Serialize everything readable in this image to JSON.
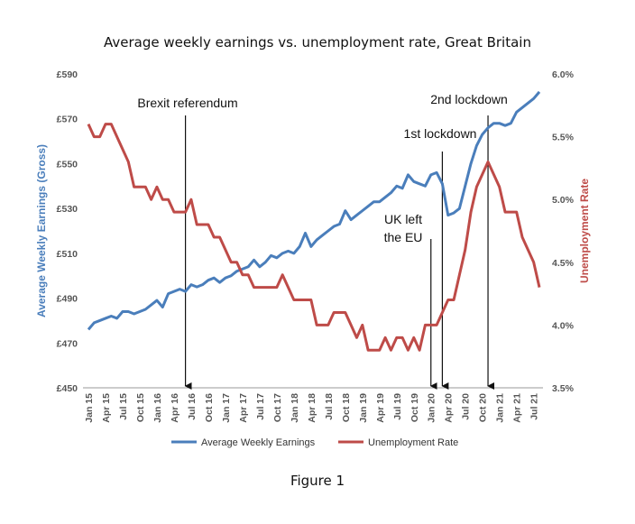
{
  "chart_data": {
    "type": "line",
    "title": "Average weekly earnings vs. unemployment rate, Great Britain",
    "caption": "Figure 1",
    "y_label": "Average Weekly Earnings (Gross)",
    "y2_label": "Unemployment Rate",
    "categories": [
      "Jan 15",
      null,
      null,
      "Apr 15",
      null,
      null,
      "Jul 15",
      null,
      null,
      "Oct 15",
      null,
      null,
      "Jan 16",
      null,
      null,
      "Apr 16",
      null,
      null,
      "Jul 16",
      null,
      null,
      "Oct 16",
      null,
      null,
      "Jan 17",
      null,
      null,
      "Apr 17",
      null,
      null,
      "Jul 17",
      null,
      null,
      "Oct 17",
      null,
      null,
      "Jan 18",
      null,
      null,
      "Apr 18",
      null,
      null,
      "Jul 18",
      null,
      null,
      "Oct 18",
      null,
      null,
      "Jan 19",
      null,
      null,
      "Apr 19",
      null,
      null,
      "Jul 19",
      null,
      null,
      "Oct 19",
      null,
      null,
      "Jan 20",
      null,
      null,
      "Apr 20",
      null,
      null,
      "Jul 20",
      null,
      null,
      "Oct 20",
      null,
      null,
      "Jan 21",
      null,
      null,
      "Apr 21",
      null,
      null,
      "Jul 21",
      null
    ],
    "series": [
      {
        "name": "Average Weekly Earnings",
        "color": "#4a7ebb",
        "values": [
          476,
          479,
          480,
          481,
          482,
          481,
          484,
          484,
          483,
          484,
          485,
          487,
          489,
          486,
          492,
          493,
          494,
          493,
          496,
          495,
          496,
          498,
          499,
          497,
          499,
          500,
          502,
          503,
          504,
          507,
          504,
          506,
          509,
          508,
          510,
          511,
          510,
          513,
          519,
          513,
          516,
          518,
          520,
          522,
          523,
          529,
          525,
          527,
          529,
          531,
          533,
          533,
          535,
          537,
          540,
          539,
          545,
          542,
          541,
          540,
          545,
          546,
          541,
          527,
          528,
          530,
          540,
          550,
          558,
          563,
          566,
          568,
          568,
          567,
          568,
          573,
          575,
          577,
          579,
          582
        ]
      },
      {
        "name": "Unemployment Rate",
        "color": "#be4b48",
        "axis": "y2",
        "values": [
          5.6,
          5.5,
          5.5,
          5.6,
          5.6,
          5.5,
          5.4,
          5.3,
          5.1,
          5.1,
          5.1,
          5.0,
          5.1,
          5.0,
          5.0,
          4.9,
          4.9,
          4.9,
          5.0,
          4.8,
          4.8,
          4.8,
          4.7,
          4.7,
          4.6,
          4.5,
          4.5,
          4.4,
          4.4,
          4.3,
          4.3,
          4.3,
          4.3,
          4.3,
          4.4,
          4.3,
          4.2,
          4.2,
          4.2,
          4.2,
          4.0,
          4.0,
          4.0,
          4.1,
          4.1,
          4.1,
          4.0,
          3.9,
          4.0,
          3.8,
          3.8,
          3.8,
          3.9,
          3.8,
          3.9,
          3.9,
          3.8,
          3.9,
          3.8,
          4.0,
          4.0,
          4.0,
          4.1,
          4.2,
          4.2,
          4.4,
          4.6,
          4.9,
          5.1,
          5.2,
          5.3,
          5.2,
          5.1,
          4.9,
          4.9,
          4.9,
          4.7,
          4.6,
          4.5,
          4.3
        ]
      }
    ],
    "ylim": [
      450,
      590
    ],
    "yticks": [
      {
        "value": 450,
        "label": "£450"
      },
      {
        "value": 470,
        "label": "£470"
      },
      {
        "value": 490,
        "label": "£490"
      },
      {
        "value": 510,
        "label": "£510"
      },
      {
        "value": 530,
        "label": "£530"
      },
      {
        "value": 550,
        "label": "£550"
      },
      {
        "value": 570,
        "label": "£570"
      },
      {
        "value": 590,
        "label": "£590"
      }
    ],
    "y2lim": [
      3.5,
      6
    ],
    "y2ticks": [
      {
        "value": 3.5,
        "label": "3.5%"
      },
      {
        "value": 4,
        "label": "4.0%"
      },
      {
        "value": 4.5,
        "label": "4.5%"
      },
      {
        "value": 5,
        "label": "5.0%"
      },
      {
        "value": 5.5,
        "label": "5.5%"
      },
      {
        "value": 6,
        "label": "6.0%"
      }
    ],
    "annotations": [
      {
        "lines": [
          "Brexit referendum"
        ]
      },
      {
        "lines": [
          "1st lockdown"
        ]
      },
      {
        "lines": [
          "UK left",
          "the EU"
        ]
      },
      {
        "lines": [
          "2nd lockdown"
        ]
      }
    ],
    "legend": "bottom"
  }
}
